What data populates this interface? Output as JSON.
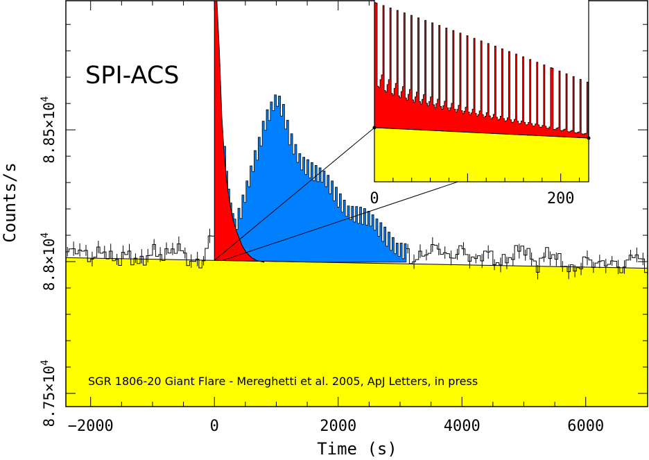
{
  "chart_data": {
    "type": "area",
    "main": {
      "title": "SPI-ACS",
      "note": "SGR 1806-20 Giant Flare - Mereghetti et al. 2005, ApJ Letters, in press",
      "xlabel": "Time (s)",
      "ylabel": "Counts/s",
      "xlim": [
        -2400,
        7000
      ],
      "ylim": [
        87450,
        88990
      ],
      "x_ticks": [
        {
          "value": -2000,
          "label": "−2000"
        },
        {
          "value": 0,
          "label": "0"
        },
        {
          "value": 2000,
          "label": "2000"
        },
        {
          "value": 4000,
          "label": "4000"
        },
        {
          "value": 6000,
          "label": "6000"
        }
      ],
      "y_ticks": [
        {
          "value": 87500,
          "label": "8.75×10",
          "exp": "4"
        },
        {
          "value": 88000,
          "label": "8.8×10",
          "exp": "4"
        },
        {
          "value": 88500,
          "label": "8.85×10",
          "exp": "4"
        }
      ],
      "background": {
        "x": [
          -2400,
          7000
        ],
        "y": [
          88015,
          87975
        ]
      },
      "colors": {
        "background": "#ffff00",
        "flare": "#ff0000",
        "afterglow": "#0080ff",
        "frame": "#000000"
      },
      "flare_component": {
        "x": [
          0,
          40,
          80,
          120,
          160,
          200,
          250,
          300,
          350,
          400,
          450,
          500,
          600,
          700,
          800
        ],
        "y": [
          88990,
          88990,
          88800,
          88550,
          88400,
          88300,
          88220,
          88160,
          88120,
          88090,
          88060,
          88040,
          88015,
          88003,
          87998
        ]
      },
      "afterglow_component": {
        "x": [
          0,
          200,
          400,
          500,
          600,
          700,
          800,
          900,
          1000,
          1100,
          1200,
          1400,
          1600,
          1800,
          2000,
          2200,
          2400,
          2600,
          2800,
          3000,
          3100
        ],
        "y": [
          88005,
          88040,
          88190,
          88290,
          88380,
          88440,
          88520,
          88560,
          88600,
          88560,
          88480,
          88390,
          88330,
          88290,
          88240,
          88200,
          88165,
          88120,
          88090,
          88060,
          88040
        ]
      },
      "light_curve": {
        "x": [
          -2400,
          -2200,
          -2000,
          -1800,
          -1600,
          -1400,
          -1200,
          -1000,
          -800,
          -600,
          -400,
          -200,
          -100,
          0,
          3100,
          3200,
          3400,
          3600,
          3800,
          4000,
          4200,
          4400,
          4600,
          4800,
          5000,
          5200,
          5400,
          5600,
          5800,
          6000,
          6200,
          6400,
          6600,
          6800,
          7000
        ],
        "y": [
          88030,
          88050,
          88010,
          88045,
          88000,
          88030,
          87990,
          88040,
          88020,
          88060,
          88000,
          87990,
          88070,
          88110,
          88040,
          88000,
          88030,
          88060,
          88010,
          88050,
          88000,
          88040,
          87990,
          88020,
          88060,
          87980,
          88040,
          88000,
          87960,
          88010,
          87990,
          88000,
          87970,
          88040,
          87960
        ]
      }
    },
    "inset": {
      "xlim": [
        0,
        230
      ],
      "x_ticks": [
        {
          "value": 0,
          "label": "0"
        },
        {
          "value": 200,
          "label": "200"
        }
      ],
      "baseline_y": [
        0.06,
        0.0
      ],
      "pulse_period_s": 7.56,
      "pulse_peak": [
        0.98,
        0.4
      ],
      "pulse_trough": [
        0.5,
        0.03
      ]
    }
  }
}
